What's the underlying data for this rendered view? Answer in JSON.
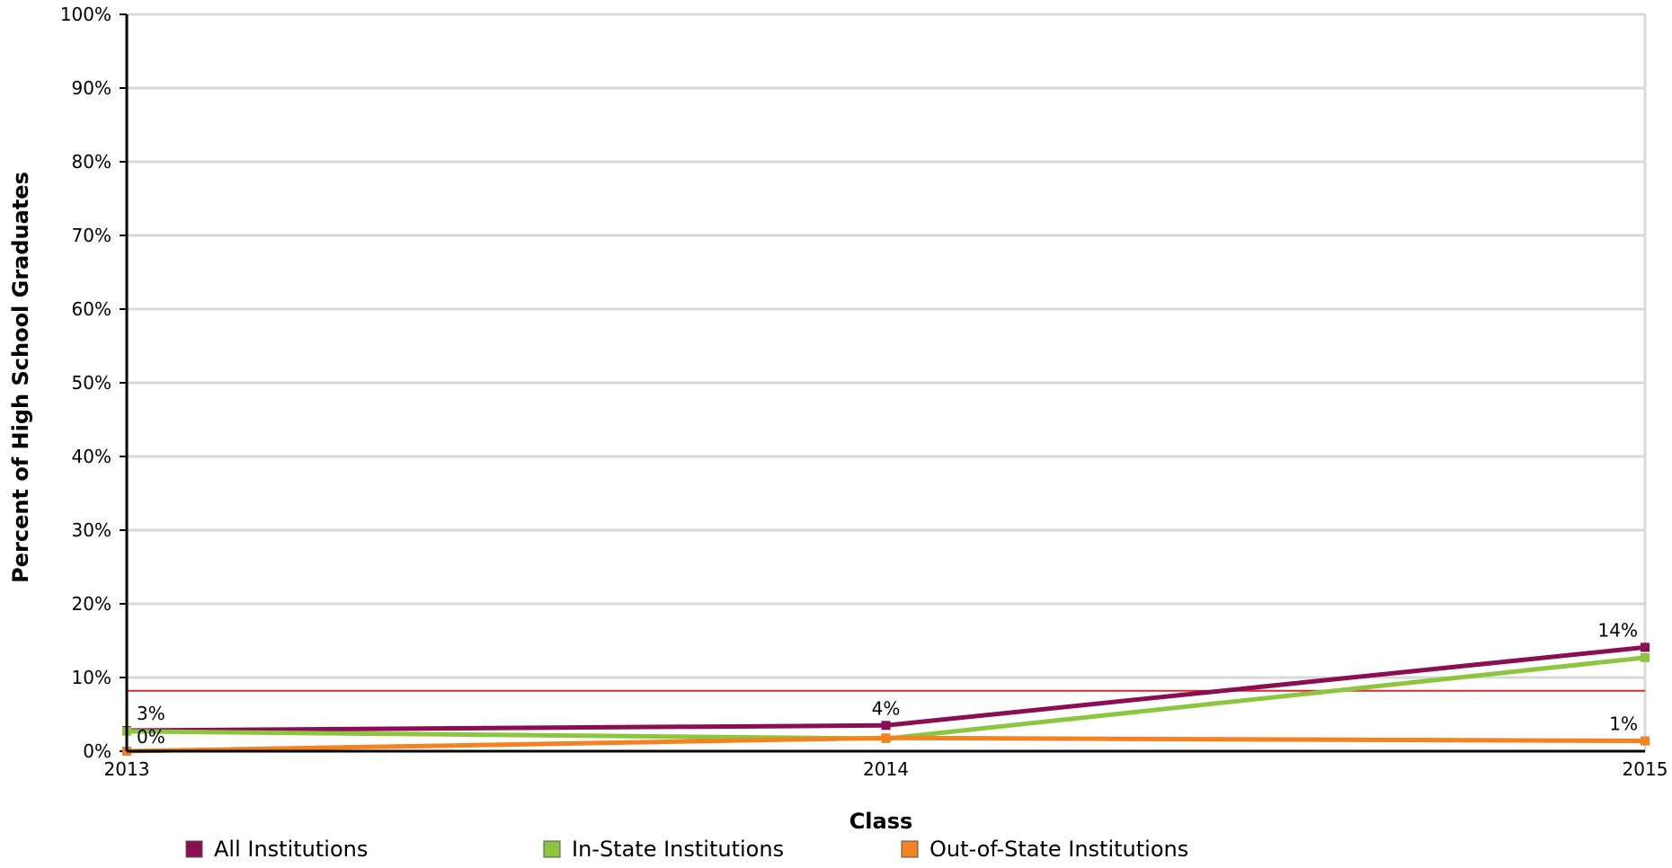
{
  "chart_data": {
    "type": "line",
    "xlabel": "Class",
    "ylabel": "Percent of High School Graduates",
    "categories": [
      "2013",
      "2014",
      "2015"
    ],
    "ylim": [
      0,
      100
    ],
    "yticks": [
      "0%",
      "10%",
      "20%",
      "30%",
      "40%",
      "50%",
      "60%",
      "70%",
      "80%",
      "90%",
      "100%"
    ],
    "grid": true,
    "legend_position": "bottom",
    "reference_line": {
      "value": 8.2,
      "color": "#e3262c"
    },
    "series": [
      {
        "name": "All Institutions",
        "color": "#8b0d52",
        "values": [
          2.8,
          3.5,
          14.1
        ]
      },
      {
        "name": "In-State Institutions",
        "color": "#8cc63f",
        "values": [
          2.7,
          1.7,
          12.7
        ]
      },
      {
        "name": "Out-of-State Institutions",
        "color": "#f58220",
        "values": [
          0.0,
          1.8,
          1.4
        ]
      }
    ],
    "data_labels": [
      {
        "series": 0,
        "index": 0,
        "text": "3%"
      },
      {
        "series": 2,
        "index": 0,
        "text": "0%"
      },
      {
        "series": 0,
        "index": 1,
        "text": "4%"
      },
      {
        "series": 0,
        "index": 2,
        "text": "14%"
      },
      {
        "series": 2,
        "index": 2,
        "text": "1%"
      }
    ]
  }
}
